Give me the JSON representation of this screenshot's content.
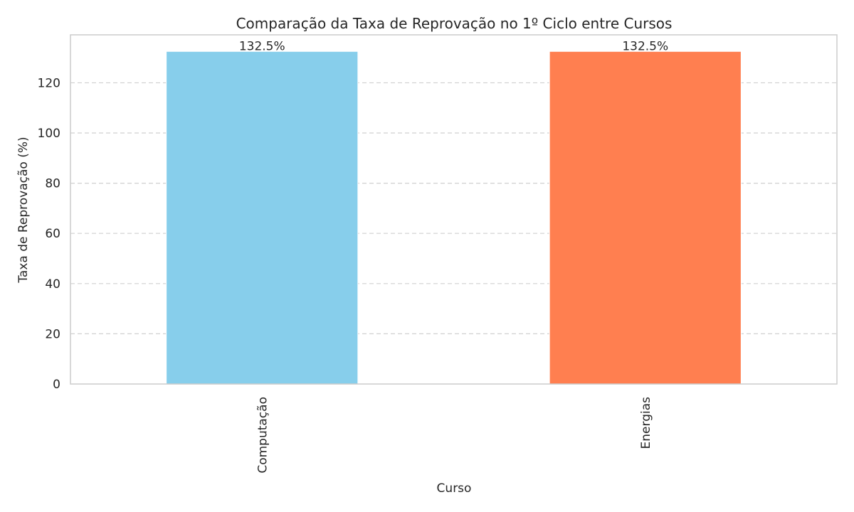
{
  "chart_data": {
    "type": "bar",
    "title": "Comparação da Taxa de Reprovação no 1º Ciclo entre Cursos",
    "xlabel": "Curso",
    "ylabel": "Taxa de Reprovação (%)",
    "categories": [
      "Computação",
      "Energias"
    ],
    "values": [
      132.5,
      132.5
    ],
    "data_labels": [
      "132.5%",
      "132.5%"
    ],
    "colors": [
      "#87CEEB",
      "#FF7F50"
    ],
    "ylim": [
      0,
      139.1
    ],
    "yticks": [
      0,
      20,
      40,
      60,
      80,
      100,
      120
    ],
    "grid": "y-dashed",
    "legend": "none"
  }
}
